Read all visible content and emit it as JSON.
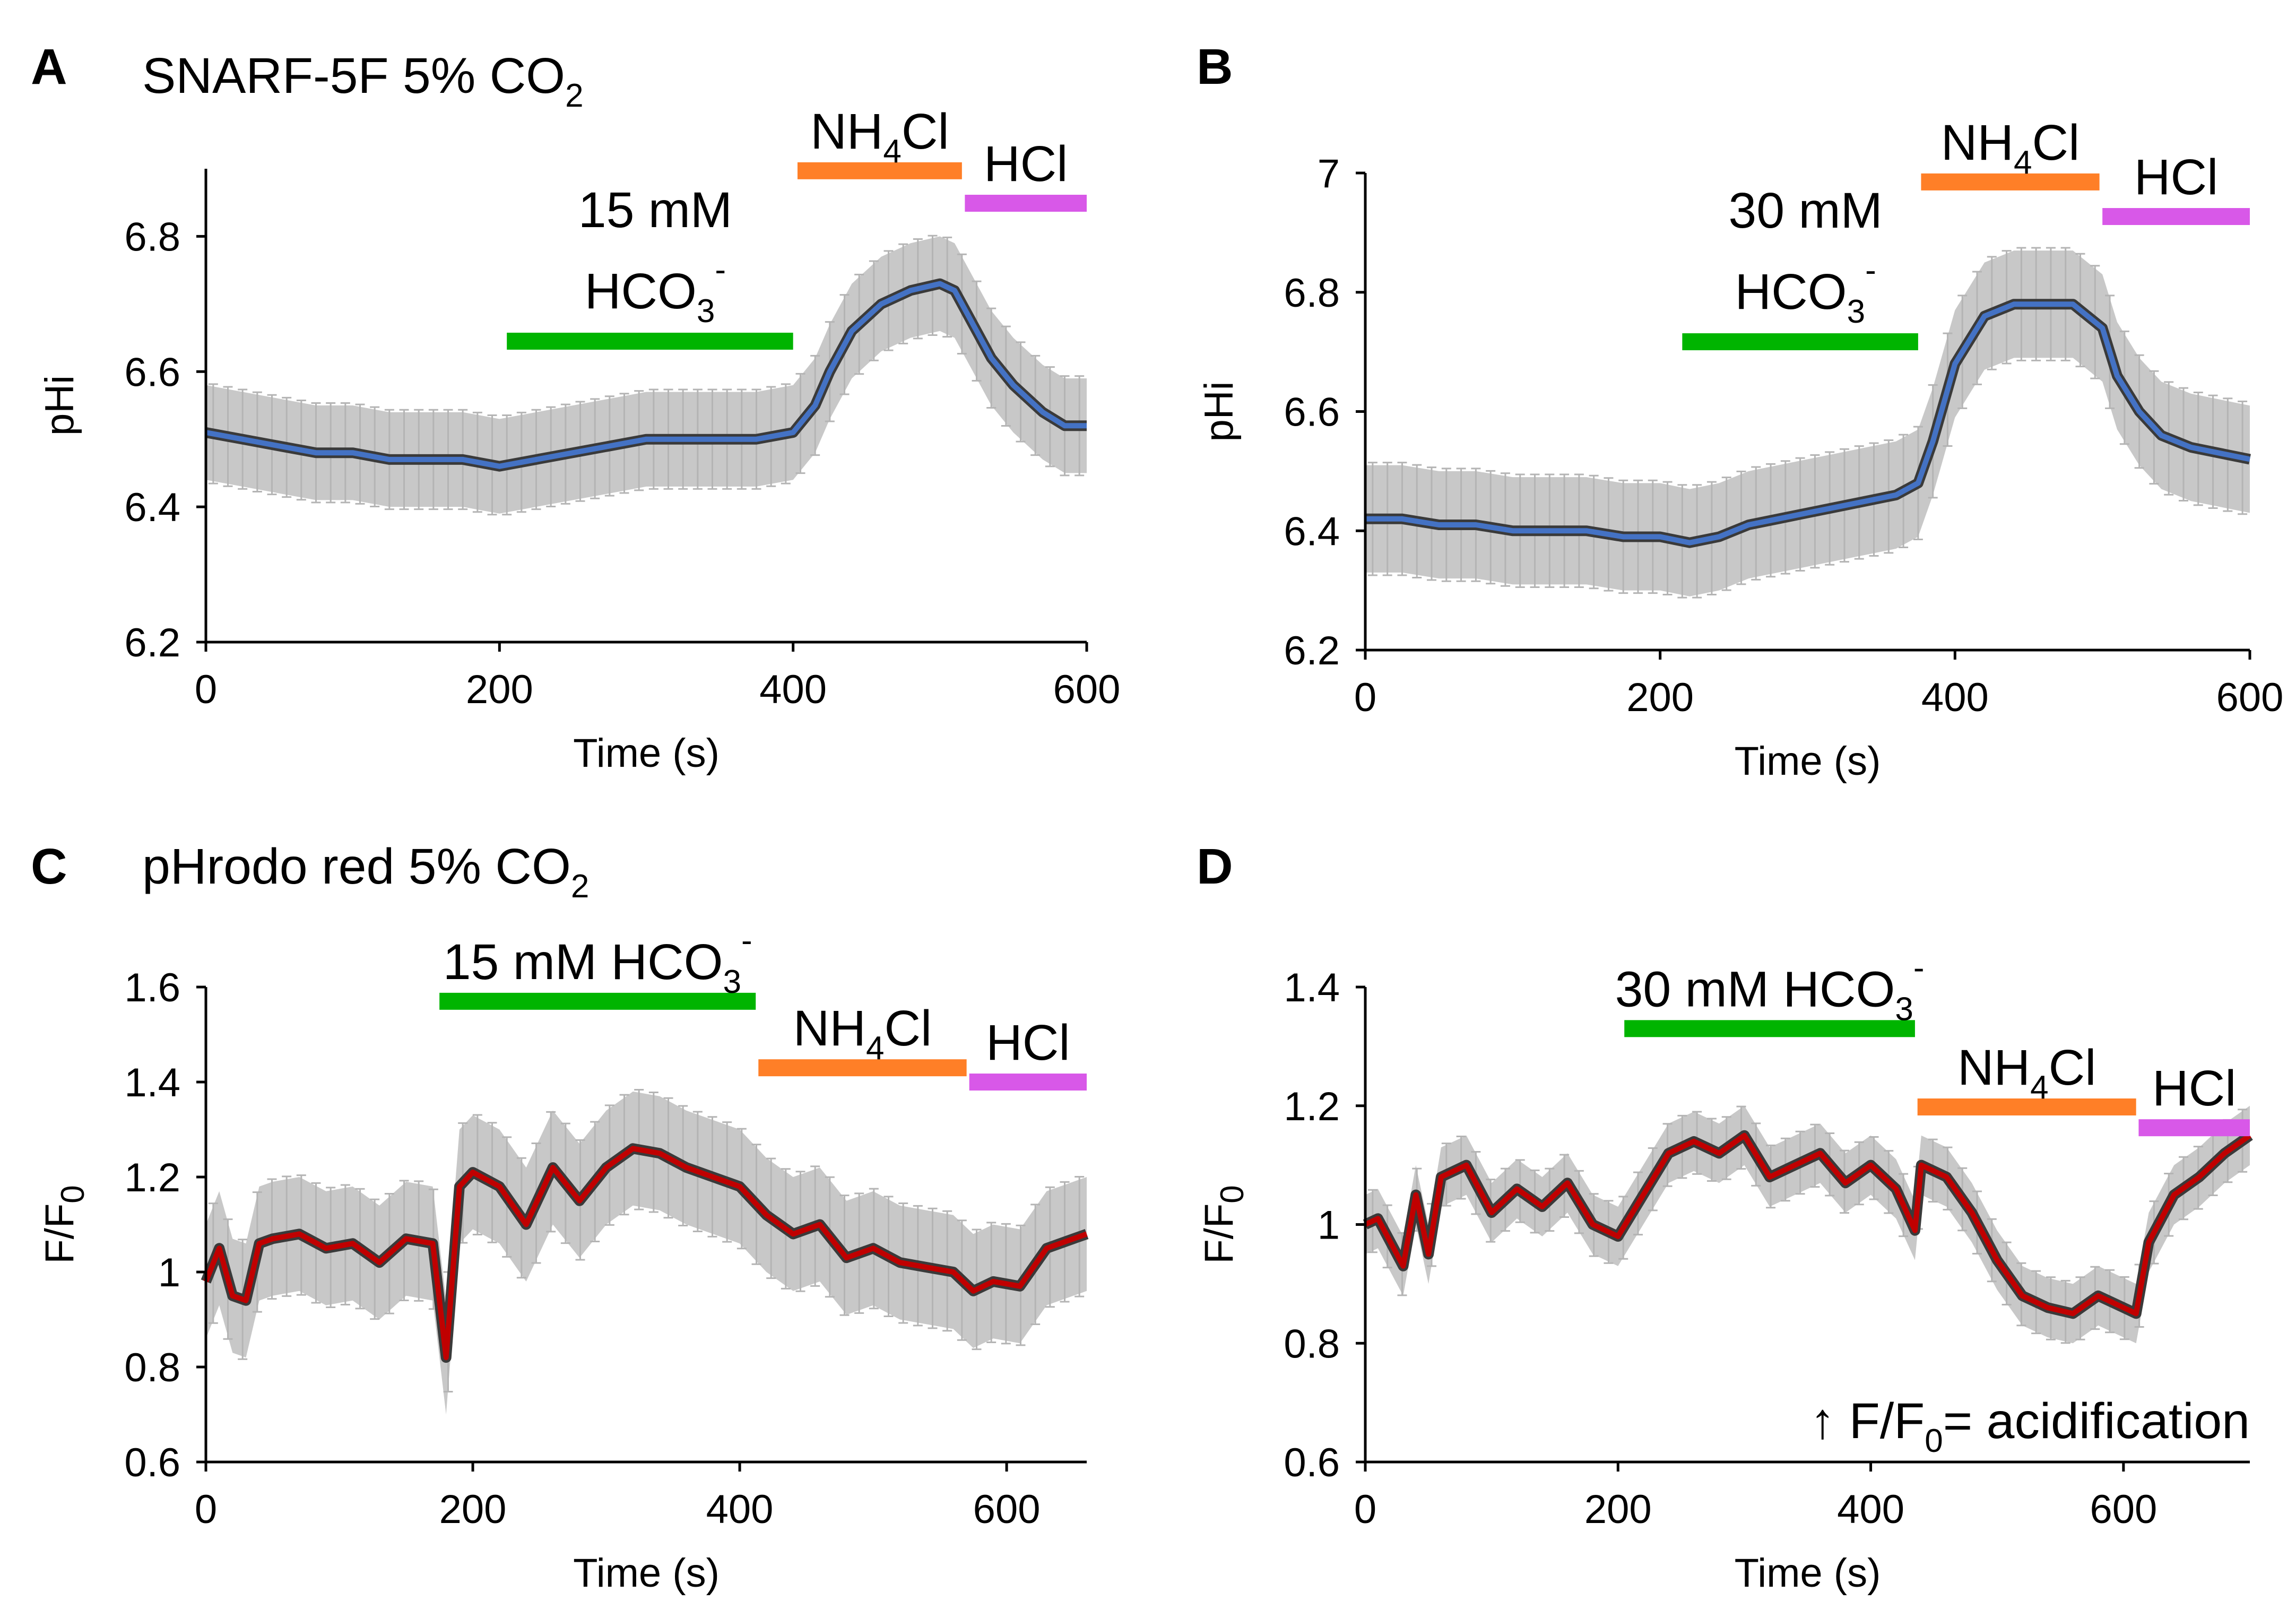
{
  "chart_data": [
    {
      "panel": "A",
      "type": "line",
      "title": "SNARF-5F 5% CO",
      "title_sub": "2",
      "xlabel": "Time (s)",
      "ylabel": "pHi",
      "xlim": [
        0,
        600
      ],
      "ylim": [
        6.2,
        6.9
      ],
      "xticks": [
        0,
        200,
        400,
        600
      ],
      "xtick_labels": [
        "0",
        "200",
        "400",
        "600"
      ],
      "yticks": [
        6.2,
        6.4,
        6.6,
        6.8
      ],
      "ytick_labels": [
        "6.2",
        "6.4",
        "6.6",
        "6.8"
      ],
      "line_color": "#4472c4",
      "band_color": "#c8c8c8",
      "series": [
        {
          "name": "mean pHi",
          "x": [
            0,
            25,
            50,
            75,
            100,
            125,
            150,
            175,
            200,
            225,
            250,
            275,
            300,
            325,
            350,
            375,
            400,
            415,
            425,
            440,
            460,
            480,
            500,
            510,
            520,
            535,
            550,
            570,
            585,
            600
          ],
          "y": [
            6.51,
            6.5,
            6.49,
            6.48,
            6.48,
            6.47,
            6.47,
            6.47,
            6.46,
            6.47,
            6.48,
            6.49,
            6.5,
            6.5,
            6.5,
            6.5,
            6.51,
            6.55,
            6.6,
            6.66,
            6.7,
            6.72,
            6.73,
            6.72,
            6.68,
            6.62,
            6.58,
            6.54,
            6.52,
            6.52
          ],
          "err": 0.07
        }
      ],
      "bars": [
        {
          "label_line1": "15 mM",
          "label_line2": "HCO",
          "label_sub": "3",
          "label_sup": "-",
          "x0": 205,
          "x1": 400,
          "level": 6.645,
          "color": "#00b400"
        },
        {
          "label": "NH",
          "label_sub": "4",
          "label_end": "Cl",
          "x0": 403,
          "x1": 515,
          "level": 6.897,
          "color": "#ff7f27"
        },
        {
          "label": "HCl",
          "x0": 517,
          "x1": 600,
          "level": 6.849,
          "color": "#d858e8"
        }
      ]
    },
    {
      "panel": "B",
      "type": "line",
      "xlabel": "Time (s)",
      "ylabel": "pHi",
      "xlim": [
        0,
        600
      ],
      "ylim": [
        6.2,
        7.0
      ],
      "xticks": [
        0,
        200,
        400,
        600
      ],
      "xtick_labels": [
        "0",
        "200",
        "400",
        "600"
      ],
      "yticks": [
        6.2,
        6.4,
        6.6,
        6.8,
        7.0
      ],
      "ytick_labels": [
        "6.2",
        "6.4",
        "6.6",
        "6.8",
        "7"
      ],
      "line_color": "#4472c4",
      "band_color": "#c8c8c8",
      "series": [
        {
          "name": "mean pHi",
          "x": [
            0,
            25,
            50,
            75,
            100,
            125,
            150,
            175,
            200,
            220,
            240,
            260,
            280,
            300,
            320,
            340,
            360,
            375,
            385,
            400,
            420,
            440,
            460,
            480,
            490,
            500,
            510,
            525,
            540,
            560,
            580,
            600
          ],
          "y": [
            6.42,
            6.42,
            6.41,
            6.41,
            6.4,
            6.4,
            6.4,
            6.39,
            6.39,
            6.38,
            6.39,
            6.41,
            6.42,
            6.43,
            6.44,
            6.45,
            6.46,
            6.48,
            6.55,
            6.68,
            6.76,
            6.78,
            6.78,
            6.78,
            6.76,
            6.74,
            6.66,
            6.6,
            6.56,
            6.54,
            6.53,
            6.52
          ],
          "err": 0.09
        }
      ],
      "bars": [
        {
          "label_line1": "30 mM",
          "label_line2": "HCO",
          "label_sub": "3",
          "label_sup": "-",
          "x0": 215,
          "x1": 375,
          "level": 6.717,
          "color": "#00b400"
        },
        {
          "label": "NH",
          "label_sub": "4",
          "label_end": "Cl",
          "x0": 377,
          "x1": 498,
          "level": 6.985,
          "color": "#ff7f27"
        },
        {
          "label": "HCl",
          "x0": 500,
          "x1": 600,
          "level": 6.927,
          "color": "#d858e8"
        }
      ]
    },
    {
      "panel": "C",
      "type": "line",
      "title": "pHrodo red 5% CO",
      "title_sub": "2",
      "xlabel": "Time (s)",
      "ylabel": "F/F",
      "ylabel_sub": "0",
      "xlim": [
        0,
        660
      ],
      "ylim": [
        0.6,
        1.6
      ],
      "xticks": [
        0,
        200,
        400,
        600
      ],
      "xtick_labels": [
        "0",
        "200",
        "400",
        "600"
      ],
      "yticks": [
        0.6,
        0.8,
        1.0,
        1.2,
        1.4,
        1.6
      ],
      "ytick_labels": [
        "0.6",
        "0.8",
        "1",
        "1.2",
        "1.4",
        "1.6"
      ],
      "line_color": "#c00000",
      "band_color": "#c8c8c8",
      "series": [
        {
          "name": "mean F/F0",
          "x": [
            0,
            10,
            20,
            30,
            40,
            50,
            70,
            90,
            110,
            130,
            150,
            170,
            180,
            190,
            200,
            220,
            240,
            260,
            280,
            300,
            320,
            340,
            360,
            380,
            400,
            420,
            440,
            460,
            480,
            500,
            520,
            540,
            560,
            575,
            590,
            610,
            630,
            650,
            660
          ],
          "y": [
            0.98,
            1.05,
            0.95,
            0.94,
            1.06,
            1.07,
            1.08,
            1.05,
            1.06,
            1.02,
            1.07,
            1.06,
            0.82,
            1.18,
            1.21,
            1.18,
            1.1,
            1.22,
            1.15,
            1.22,
            1.26,
            1.25,
            1.22,
            1.2,
            1.18,
            1.12,
            1.08,
            1.1,
            1.03,
            1.05,
            1.02,
            1.01,
            1.0,
            0.96,
            0.98,
            0.97,
            1.05,
            1.07,
            1.08
          ],
          "err": 0.12
        }
      ],
      "bars": [
        {
          "label": "15 mM HCO",
          "label_sub": "3",
          "label_sup": "-",
          "x0": 175,
          "x1": 412,
          "level": 1.57,
          "color": "#00b400"
        },
        {
          "label": "NH",
          "label_sub": "4",
          "label_end": "Cl",
          "x0": 414,
          "x1": 570,
          "level": 1.43,
          "color": "#ff7f27"
        },
        {
          "label": "HCl",
          "x0": 572,
          "x1": 660,
          "level": 1.4,
          "color": "#d858e8"
        }
      ]
    },
    {
      "panel": "D",
      "type": "line",
      "xlabel": "Time (s)",
      "ylabel": "F/F",
      "ylabel_sub": "0",
      "xlim": [
        0,
        700
      ],
      "ylim": [
        0.6,
        1.4
      ],
      "xticks": [
        0,
        200,
        400,
        600
      ],
      "xtick_labels": [
        "0",
        "200",
        "400",
        "600"
      ],
      "yticks": [
        0.6,
        0.8,
        1.0,
        1.2,
        1.4
      ],
      "ytick_labels": [
        "0.6",
        "0.8",
        "1",
        "1.2",
        "1.4"
      ],
      "line_color": "#c00000",
      "band_color": "#c8c8c8",
      "annotation": {
        "arrow": "↑",
        "text": "F/F",
        "sub": "0",
        "end": "= acidification"
      },
      "series": [
        {
          "name": "mean F/F0",
          "x": [
            0,
            10,
            20,
            30,
            40,
            50,
            60,
            80,
            100,
            120,
            140,
            160,
            180,
            200,
            220,
            240,
            260,
            280,
            300,
            320,
            340,
            360,
            380,
            400,
            420,
            435,
            440,
            460,
            480,
            500,
            520,
            540,
            560,
            580,
            600,
            610,
            620,
            640,
            660,
            680,
            700
          ],
          "y": [
            1.0,
            1.01,
            0.97,
            0.93,
            1.05,
            0.95,
            1.08,
            1.1,
            1.02,
            1.06,
            1.03,
            1.07,
            1.0,
            0.98,
            1.05,
            1.12,
            1.14,
            1.12,
            1.15,
            1.08,
            1.1,
            1.12,
            1.07,
            1.1,
            1.06,
            0.99,
            1.1,
            1.08,
            1.02,
            0.94,
            0.88,
            0.86,
            0.85,
            0.88,
            0.86,
            0.85,
            0.97,
            1.05,
            1.08,
            1.12,
            1.15
          ],
          "err": 0.05
        }
      ],
      "bars": [
        {
          "label": "30 mM HCO",
          "label_sub": "3",
          "label_sup": "-",
          "x0": 205,
          "x1": 435,
          "level": 1.33,
          "color": "#00b400"
        },
        {
          "label": "NH",
          "label_sub": "4",
          "label_end": "Cl",
          "x0": 437,
          "x1": 610,
          "level": 1.198,
          "color": "#ff7f27"
        },
        {
          "label": "HCl",
          "x0": 612,
          "x1": 700,
          "level": 1.163,
          "color": "#d858e8"
        }
      ]
    }
  ]
}
